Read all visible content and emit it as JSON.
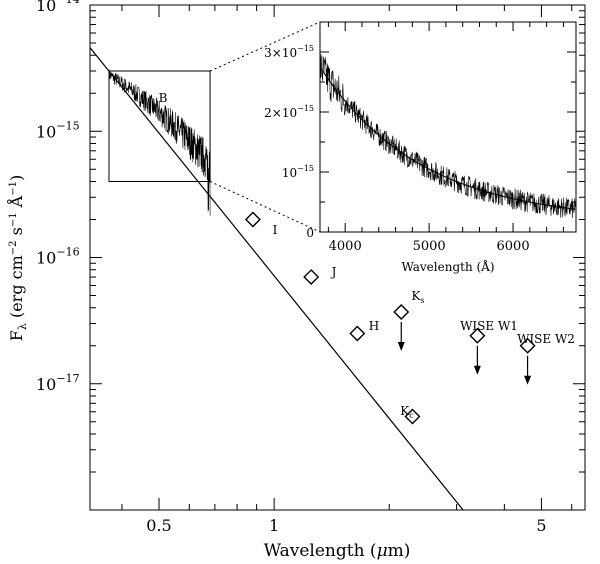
{
  "chart_data": [
    {
      "type": "scatter",
      "name": "main-sed",
      "x_scale": "log",
      "y_scale": "log",
      "xlabel_parts": [
        "Wavelength (",
        "μ",
        "m)"
      ],
      "ylabel_parts": [
        "F",
        "λ",
        " (erg cm",
        "−2",
        " s",
        "−1",
        " Å",
        "−1",
        ")"
      ],
      "xlim": [
        0.33,
        6.5
      ],
      "ylim": [
        1e-18,
        1e-14
      ],
      "x_ticks": [
        {
          "value": 0.5,
          "label": "0.5"
        },
        {
          "value": 1,
          "label": "1"
        },
        {
          "value": 5,
          "label": "5"
        }
      ],
      "y_ticks": [
        {
          "value": 1e-14,
          "base": "10",
          "exp": "−14"
        },
        {
          "value": 1e-15,
          "base": "10",
          "exp": "−15"
        },
        {
          "value": 1e-16,
          "base": "10",
          "exp": "−16"
        },
        {
          "value": 1e-17,
          "base": "10",
          "exp": "−17"
        }
      ],
      "model_line": {
        "x": [
          0.33,
          3.12
        ],
        "y": [
          4.6e-15,
          1e-18
        ]
      },
      "spectrum": {
        "x_range": [
          0.37,
          0.68
        ],
        "y_start": 2.8e-15,
        "y_end": 5.5e-16
      },
      "photometry": [
        {
          "band": "I",
          "x": 0.88,
          "y": 2e-16,
          "upper_limit": false
        },
        {
          "band": "J",
          "x": 1.25,
          "y": 7e-17,
          "upper_limit": false
        },
        {
          "band": "H",
          "x": 1.65,
          "y": 2.5e-17,
          "upper_limit": false
        },
        {
          "band": "Kc",
          "x": 2.3,
          "y": 5.5e-18,
          "upper_limit": false
        },
        {
          "band": "Ks",
          "x": 2.15,
          "y": 3.7e-17,
          "upper_limit": true
        },
        {
          "band": "WISE W1",
          "x": 3.4,
          "y": 2.4e-17,
          "upper_limit": true
        },
        {
          "band": "WISE W2",
          "x": 4.6,
          "y": 2e-17,
          "upper_limit": true
        }
      ],
      "point_labels": [
        {
          "text": "B"
        },
        {
          "text": "I"
        },
        {
          "text": "J"
        },
        {
          "text": "H"
        },
        {
          "text": "K",
          "sub": "s"
        },
        {
          "text": "K",
          "sub": "c"
        },
        {
          "text": "WISE W1"
        },
        {
          "text": "WISE W2"
        }
      ],
      "zoom_box": {
        "x": [
          0.37,
          0.68
        ],
        "y": [
          4e-16,
          3e-15
        ]
      }
    },
    {
      "type": "line",
      "name": "inset-spectrum",
      "xlabel": "Wavelength (Å)",
      "xlim": [
        3700,
        6750
      ],
      "ylim": [
        0,
        3.5e-15
      ],
      "x_ticks": [
        {
          "value": 4000,
          "label": "4000"
        },
        {
          "value": 5000,
          "label": "5000"
        },
        {
          "value": 6000,
          "label": "6000"
        }
      ],
      "y_ticks": [
        {
          "value": 0,
          "label": "0"
        },
        {
          "value": 1e-15,
          "label": "10",
          "exp": "−15"
        },
        {
          "value": 2e-15,
          "label": "2×10",
          "exp": "−15"
        },
        {
          "value": 3e-15,
          "label": "3×10",
          "exp": "−15"
        }
      ],
      "model_fit": {
        "x_range": [
          3700,
          6750
        ],
        "y_start": 2.75e-15,
        "y_end": 3.8e-16
      }
    }
  ]
}
